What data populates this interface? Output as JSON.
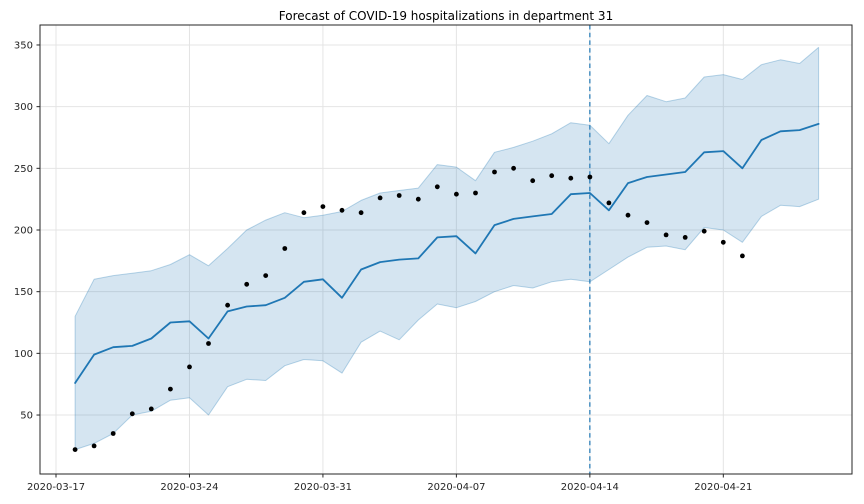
{
  "title": "Forecast of COVID-19 hospitalizations in department 31",
  "chart_data": {
    "type": "line",
    "title": "Forecast of COVID-19 hospitalizations in department 31",
    "xlabel": "",
    "ylabel": "",
    "grid": true,
    "legend": "none",
    "ylim": [
      2,
      366
    ],
    "y_ticks": [
      50,
      100,
      150,
      200,
      250,
      300,
      350
    ],
    "x_ticks": [
      "2020-03-17",
      "2020-03-24",
      "2020-03-31",
      "2020-04-07",
      "2020-04-14",
      "2020-04-21"
    ],
    "x": [
      "2020-03-18",
      "2020-03-19",
      "2020-03-20",
      "2020-03-21",
      "2020-03-22",
      "2020-03-23",
      "2020-03-24",
      "2020-03-25",
      "2020-03-26",
      "2020-03-27",
      "2020-03-28",
      "2020-03-29",
      "2020-03-30",
      "2020-03-31",
      "2020-04-01",
      "2020-04-02",
      "2020-04-03",
      "2020-04-04",
      "2020-04-05",
      "2020-04-06",
      "2020-04-07",
      "2020-04-08",
      "2020-04-09",
      "2020-04-10",
      "2020-04-11",
      "2020-04-12",
      "2020-04-13",
      "2020-04-14",
      "2020-04-15",
      "2020-04-16",
      "2020-04-17",
      "2020-04-18",
      "2020-04-19",
      "2020-04-20",
      "2020-04-21",
      "2020-04-22",
      "2020-04-23",
      "2020-04-24",
      "2020-04-25",
      "2020-04-26"
    ],
    "series": [
      {
        "name": "observed",
        "style": "scatter",
        "color": "#000000",
        "values": [
          22,
          25,
          35,
          51,
          55,
          71,
          89,
          108,
          139,
          156,
          163,
          185,
          214,
          219,
          216,
          214,
          226,
          228,
          225,
          235,
          229,
          230,
          247,
          250,
          240,
          244,
          242,
          243,
          222,
          212,
          206,
          196,
          194,
          199,
          190,
          179,
          null,
          null,
          null,
          null
        ]
      },
      {
        "name": "forecast",
        "style": "line",
        "color": "#1f77b4",
        "values": [
          76,
          99,
          105,
          106,
          112,
          125,
          126,
          112,
          134,
          138,
          139,
          145,
          158,
          160,
          145,
          168,
          174,
          176,
          177,
          194,
          195,
          181,
          204,
          209,
          211,
          213,
          229,
          230,
          216,
          238,
          243,
          245,
          247,
          263,
          264,
          250,
          273,
          280,
          281,
          286
        ]
      }
    ],
    "band": {
      "name": "confidence-interval",
      "upper": [
        130,
        160,
        163,
        165,
        167,
        172,
        180,
        171,
        185,
        200,
        208,
        214,
        210,
        212,
        215,
        224,
        230,
        232,
        234,
        253,
        251,
        240,
        263,
        267,
        272,
        278,
        287,
        285,
        270,
        293,
        309,
        304,
        307,
        324,
        326,
        322,
        334,
        338,
        335,
        348
      ],
      "lower": [
        22,
        27,
        35,
        50,
        53,
        62,
        64,
        50,
        73,
        79,
        78,
        90,
        95,
        94,
        84,
        109,
        118,
        111,
        127,
        140,
        137,
        142,
        150,
        155,
        153,
        158,
        160,
        158,
        168,
        178,
        186,
        187,
        184,
        202,
        200,
        190,
        211,
        220,
        219,
        225
      ]
    },
    "vline": {
      "x": "2020-04-14",
      "style": "dashed"
    },
    "colors": {
      "forecast": "#1f77b4",
      "observed": "#000000",
      "band": "rgba(31,119,180,0.19)",
      "band_edge": "rgba(31,119,180,0.30)",
      "vline": "#1f77b4",
      "grid": "#e4e4e4",
      "axis": "#262626"
    }
  }
}
